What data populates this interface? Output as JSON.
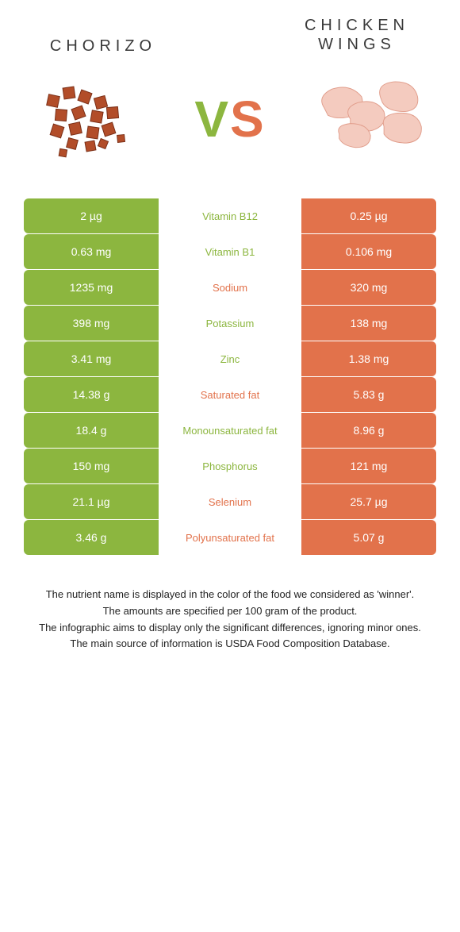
{
  "colors": {
    "left_food": "#8cb63f",
    "right_food": "#e2724b",
    "chorizo_fill": "#b24d29",
    "chorizo_dark": "#7a2f17",
    "wings_fill": "#f4cbbf",
    "wings_dark": "#e19d8b",
    "text": "#3a3a3a"
  },
  "titles": {
    "left": "CHORIZO",
    "right": "CHICKEN WINGS",
    "vs": "VS"
  },
  "rows": [
    {
      "left": "2 µg",
      "label": "Vitamin B12",
      "right": "0.25 µg",
      "winner": "left"
    },
    {
      "left": "0.63 mg",
      "label": "Vitamin B1",
      "right": "0.106 mg",
      "winner": "left"
    },
    {
      "left": "1235 mg",
      "label": "Sodium",
      "right": "320 mg",
      "winner": "right"
    },
    {
      "left": "398 mg",
      "label": "Potassium",
      "right": "138 mg",
      "winner": "left"
    },
    {
      "left": "3.41 mg",
      "label": "Zinc",
      "right": "1.38 mg",
      "winner": "left"
    },
    {
      "left": "14.38 g",
      "label": "Saturated fat",
      "right": "5.83 g",
      "winner": "right"
    },
    {
      "left": "18.4 g",
      "label": "Monounsaturated fat",
      "right": "8.96 g",
      "winner": "left"
    },
    {
      "left": "150 mg",
      "label": "Phosphorus",
      "right": "121 mg",
      "winner": "left"
    },
    {
      "left": "21.1 µg",
      "label": "Selenium",
      "right": "25.7 µg",
      "winner": "right"
    },
    {
      "left": "3.46 g",
      "label": "Polyunsaturated fat",
      "right": "5.07 g",
      "winner": "right"
    }
  ],
  "footer": {
    "line1": "The nutrient name is displayed in the color of the food we considered as 'winner'.",
    "line2": "The amounts are specified per 100 gram of the product.",
    "line3": "The infographic aims to display only the significant differences, ignoring minor ones.",
    "line4": "The main source of information is USDA Food Composition Database."
  }
}
